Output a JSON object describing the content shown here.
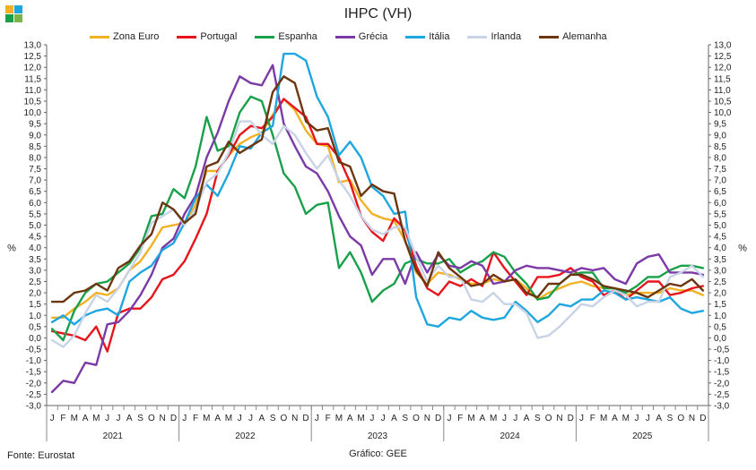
{
  "chart_data": {
    "type": "line",
    "title": "IHPC (VH)",
    "ylabel": "%",
    "ylabel_right": "%",
    "ylim": [
      -3.0,
      13.0
    ],
    "ytick_step": 0.5,
    "yticks": [
      "13,0",
      "12,5",
      "12,0",
      "11,5",
      "11,0",
      "10,5",
      "10,0",
      "9,5",
      "9,0",
      "8,5",
      "8,0",
      "7,5",
      "7,0",
      "6,5",
      "6,0",
      "5,5",
      "5,0",
      "4,5",
      "4,0",
      "3,5",
      "3,0",
      "2,5",
      "2,0",
      "1,5",
      "1,0",
      "0,5",
      "0,0",
      "-0,5",
      "-1,0",
      "-1,5",
      "-2,0",
      "-2,5",
      "-3,0"
    ],
    "month_labels": [
      "J",
      "F",
      "M",
      "A",
      "M",
      "J",
      "J",
      "A",
      "S",
      "O",
      "N",
      "D",
      "J",
      "F",
      "M",
      "A",
      "M",
      "J",
      "J",
      "A",
      "S",
      "O",
      "N",
      "D",
      "J",
      "F",
      "M",
      "A",
      "M",
      "J",
      "J",
      "A",
      "S",
      "O",
      "N",
      "D",
      "J",
      "F",
      "M",
      "A",
      "M",
      "J",
      "J",
      "A",
      "S",
      "O",
      "N",
      "D",
      "J",
      "F",
      "M",
      "A",
      "M",
      "J",
      "J",
      "A",
      "S",
      "O",
      "N",
      "D"
    ],
    "years": [
      "2021",
      "2022",
      "2023",
      "2024",
      "2025"
    ],
    "series": [
      {
        "name": "Zona Euro",
        "color": "#F2B122",
        "values": [
          0.9,
          0.9,
          1.3,
          1.6,
          2.0,
          1.9,
          2.2,
          3.0,
          3.4,
          4.1,
          4.9,
          5.0,
          5.1,
          5.9,
          7.4,
          7.4,
          8.1,
          8.6,
          8.9,
          9.1,
          9.9,
          10.6,
          10.1,
          9.2,
          8.6,
          8.5,
          6.9,
          7.0,
          6.1,
          5.5,
          5.3,
          5.2,
          4.3,
          2.9,
          2.4,
          2.9,
          2.8,
          2.6,
          2.4,
          2.4,
          2.6,
          2.5,
          2.6,
          2.2,
          1.7,
          2.0,
          2.2,
          2.4,
          2.5,
          2.3,
          2.2,
          2.2,
          1.9,
          2.0,
          2.0,
          2.0,
          2.2,
          2.1,
          2.1,
          1.9
        ]
      },
      {
        "name": "Portugal",
        "color": "#E8141C",
        "values": [
          0.3,
          0.2,
          0.1,
          -0.1,
          0.5,
          -0.6,
          1.1,
          1.3,
          1.3,
          1.8,
          2.6,
          2.8,
          3.4,
          4.4,
          5.5,
          7.4,
          8.1,
          9.0,
          9.4,
          9.3,
          9.8,
          10.6,
          10.2,
          9.8,
          8.6,
          8.6,
          8.0,
          6.9,
          5.4,
          4.7,
          4.3,
          5.3,
          4.8,
          3.2,
          2.2,
          1.9,
          2.5,
          2.3,
          2.6,
          2.3,
          3.8,
          3.1,
          2.5,
          1.9,
          2.7,
          2.7,
          2.8,
          3.1,
          2.7,
          2.5,
          1.9,
          2.1,
          1.7,
          2.1,
          2.5,
          2.5,
          1.9,
          2.0,
          2.2,
          2.3
        ]
      },
      {
        "name": "Espanha",
        "color": "#1AA04A",
        "values": [
          0.4,
          -0.1,
          1.2,
          2.0,
          2.4,
          2.5,
          2.9,
          3.3,
          4.0,
          5.4,
          5.5,
          6.6,
          6.2,
          7.6,
          9.8,
          8.3,
          8.5,
          10.0,
          10.7,
          10.5,
          9.0,
          7.3,
          6.7,
          5.5,
          5.9,
          6.0,
          3.1,
          3.8,
          2.9,
          1.6,
          2.1,
          2.4,
          3.3,
          3.5,
          3.3,
          3.3,
          3.5,
          2.9,
          3.2,
          3.4,
          3.8,
          3.6,
          2.9,
          2.4,
          1.7,
          1.8,
          2.4,
          2.8,
          2.9,
          2.9,
          2.2,
          2.2,
          2.0,
          2.3,
          2.7,
          2.7,
          3.0,
          3.2,
          3.2,
          3.1
        ]
      },
      {
        "name": "Grécia",
        "color": "#7B3AA6",
        "values": [
          -2.4,
          -1.9,
          -2.0,
          -1.1,
          -1.2,
          0.6,
          0.7,
          1.2,
          1.9,
          2.8,
          4.0,
          4.4,
          5.5,
          6.3,
          8.0,
          9.1,
          10.5,
          11.6,
          11.3,
          11.2,
          12.1,
          9.5,
          8.5,
          7.6,
          7.3,
          6.5,
          5.4,
          4.5,
          4.1,
          2.8,
          3.5,
          3.5,
          2.4,
          3.8,
          2.9,
          3.7,
          3.2,
          3.1,
          3.4,
          3.2,
          2.4,
          2.5,
          3.0,
          3.2,
          3.1,
          3.1,
          3.0,
          2.9,
          3.1,
          3.0,
          3.1,
          2.6,
          2.4,
          3.3,
          3.6,
          3.7,
          2.9,
          2.9,
          2.9,
          2.8
        ]
      },
      {
        "name": "Itália",
        "color": "#1EA6E0",
        "values": [
          0.7,
          1.0,
          0.6,
          1.0,
          1.2,
          1.3,
          1.0,
          2.5,
          2.9,
          3.2,
          3.9,
          4.2,
          5.1,
          6.2,
          6.8,
          6.3,
          7.3,
          8.5,
          8.4,
          9.1,
          9.4,
          12.6,
          12.6,
          12.3,
          10.7,
          9.8,
          8.1,
          8.7,
          8.0,
          6.7,
          6.3,
          5.5,
          5.6,
          1.8,
          0.6,
          0.5,
          0.9,
          0.8,
          1.2,
          0.9,
          0.8,
          0.9,
          1.6,
          1.2,
          0.7,
          1.0,
          1.5,
          1.4,
          1.7,
          1.7,
          2.1,
          2.0,
          1.7,
          1.8,
          1.7,
          1.6,
          1.8,
          1.3,
          1.1,
          1.2
        ]
      },
      {
        "name": "Irlanda",
        "color": "#C8D3E6",
        "values": [
          -0.1,
          -0.4,
          0.1,
          1.1,
          1.9,
          1.6,
          2.2,
          3.0,
          3.8,
          5.1,
          5.4,
          5.7,
          5.0,
          5.7,
          6.9,
          7.3,
          8.2,
          9.6,
          9.6,
          9.0,
          8.6,
          9.4,
          9.0,
          8.2,
          7.5,
          8.1,
          7.0,
          6.3,
          5.4,
          4.8,
          4.6,
          4.9,
          4.9,
          3.6,
          2.5,
          3.2,
          2.7,
          2.7,
          1.7,
          1.6,
          2.0,
          1.5,
          1.5,
          1.1,
          0.0,
          0.1,
          0.5,
          1.0,
          1.5,
          1.4,
          1.8,
          2.1,
          1.9,
          1.4,
          1.6,
          1.6,
          2.7,
          2.9,
          3.2,
          2.7
        ]
      },
      {
        "name": "Alemanha",
        "color": "#6B3610",
        "values": [
          1.6,
          1.6,
          2.0,
          2.1,
          2.4,
          2.1,
          3.1,
          3.4,
          4.1,
          4.6,
          6.0,
          5.7,
          5.1,
          5.5,
          7.6,
          7.8,
          8.7,
          8.2,
          8.5,
          8.8,
          10.9,
          11.6,
          11.3,
          9.6,
          9.2,
          9.3,
          7.8,
          7.6,
          6.3,
          6.8,
          6.5,
          6.4,
          4.3,
          3.0,
          2.3,
          3.8,
          3.1,
          2.7,
          2.3,
          2.4,
          2.8,
          2.5,
          2.6,
          2.0,
          1.8,
          2.4,
          2.4,
          2.8,
          2.8,
          2.6,
          2.3,
          2.2,
          2.1,
          2.0,
          1.8,
          2.1,
          2.4,
          2.3,
          2.6,
          2.1
        ]
      }
    ]
  },
  "footer": {
    "source": "Fonte: Eurostat",
    "credit": "Gráfico: GEE"
  },
  "logo_colors": [
    "#F2B122",
    "#1EA6E0",
    "#1AA04A",
    "#7BB24A"
  ]
}
